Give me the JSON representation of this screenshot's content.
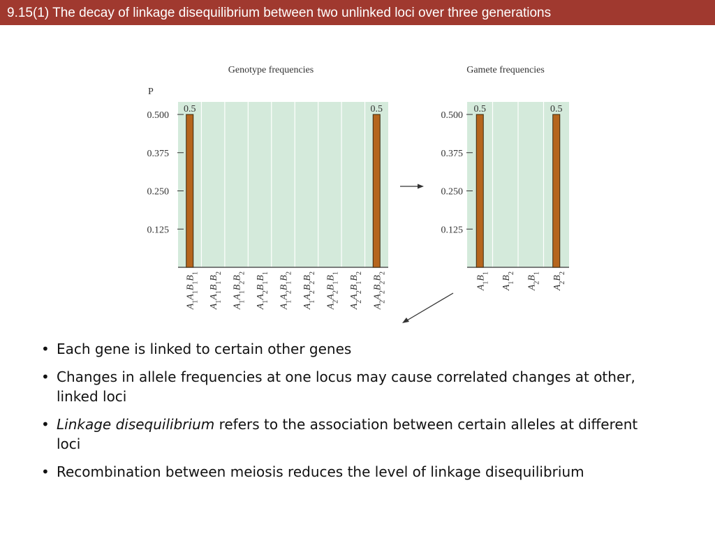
{
  "slide": {
    "title": "9.15(1)  The decay of linkage disequilibrium between two unlinked loci over three generations"
  },
  "bullets": [
    {
      "lead": "",
      "text": "Each gene is linked to certain other genes"
    },
    {
      "lead": "",
      "text": "Changes in allele frequencies at one locus may cause correlated changes at other, linked loci"
    },
    {
      "lead": "Linkage disequilibrium",
      "text": " refers to the association between certain alleles at different loci"
    },
    {
      "lead": "",
      "text": "Recombination between meiosis reduces the level of linkage disequilibrium"
    }
  ],
  "colors": {
    "title_bar": "#a0392f",
    "plot_background": "#d4eadb",
    "bar_fill": "#b5651d"
  },
  "icons": [
    "arrow-right-icon",
    "arrow-down-left-icon"
  ],
  "chart_data": [
    {
      "type": "bar",
      "title": "Genotype frequencies",
      "ylabel": "P",
      "yticks": [
        0.125,
        0.25,
        0.375,
        0.5
      ],
      "ytick_labels": [
        "0.125",
        "0.250",
        "0.375",
        "0.500"
      ],
      "ylim": [
        0,
        0.55
      ],
      "grid": true,
      "categories": [
        [
          [
            "A",
            "1"
          ],
          [
            "A",
            "1"
          ],
          [
            "B",
            "1"
          ],
          [
            "B",
            "1"
          ]
        ],
        [
          [
            "A",
            "1"
          ],
          [
            "A",
            "1"
          ],
          [
            "B",
            "1"
          ],
          [
            "B",
            "2"
          ]
        ],
        [
          [
            "A",
            "1"
          ],
          [
            "A",
            "1"
          ],
          [
            "B",
            "2"
          ],
          [
            "B",
            "2"
          ]
        ],
        [
          [
            "A",
            "1"
          ],
          [
            "A",
            "2"
          ],
          [
            "B",
            "1"
          ],
          [
            "B",
            "1"
          ]
        ],
        [
          [
            "A",
            "1"
          ],
          [
            "A",
            "2"
          ],
          [
            "B",
            "1"
          ],
          [
            "B",
            "2"
          ]
        ],
        [
          [
            "A",
            "1"
          ],
          [
            "A",
            "2"
          ],
          [
            "B",
            "2"
          ],
          [
            "B",
            "2"
          ]
        ],
        [
          [
            "A",
            "2"
          ],
          [
            "A",
            "2"
          ],
          [
            "B",
            "1"
          ],
          [
            "B",
            "1"
          ]
        ],
        [
          [
            "A",
            "2"
          ],
          [
            "A",
            "2"
          ],
          [
            "B",
            "1"
          ],
          [
            "B",
            "2"
          ]
        ],
        [
          [
            "A",
            "2"
          ],
          [
            "A",
            "2"
          ],
          [
            "B",
            "2"
          ],
          [
            "B",
            "2"
          ]
        ]
      ],
      "values": [
        0.5,
        0,
        0,
        0,
        0,
        0,
        0,
        0,
        0.5
      ],
      "data_labels": [
        "0.5",
        "",
        "",
        "",
        "",
        "",
        "",
        "",
        "0.5"
      ]
    },
    {
      "type": "bar",
      "title": "Gamete frequencies",
      "yticks": [
        0.125,
        0.25,
        0.375,
        0.5
      ],
      "ytick_labels": [
        "0.125",
        "0.250",
        "0.375",
        "0.500"
      ],
      "ylim": [
        0,
        0.55
      ],
      "grid": true,
      "categories": [
        [
          [
            "A",
            "1"
          ],
          [
            "B",
            "1"
          ]
        ],
        [
          [
            "A",
            "1"
          ],
          [
            "B",
            "2"
          ]
        ],
        [
          [
            "A",
            "2"
          ],
          [
            "B",
            "1"
          ]
        ],
        [
          [
            "A",
            "2"
          ],
          [
            "B",
            "2"
          ]
        ]
      ],
      "values": [
        0.5,
        0,
        0,
        0.5
      ],
      "data_labels": [
        "0.5",
        "",
        "",
        "0.5"
      ]
    }
  ]
}
